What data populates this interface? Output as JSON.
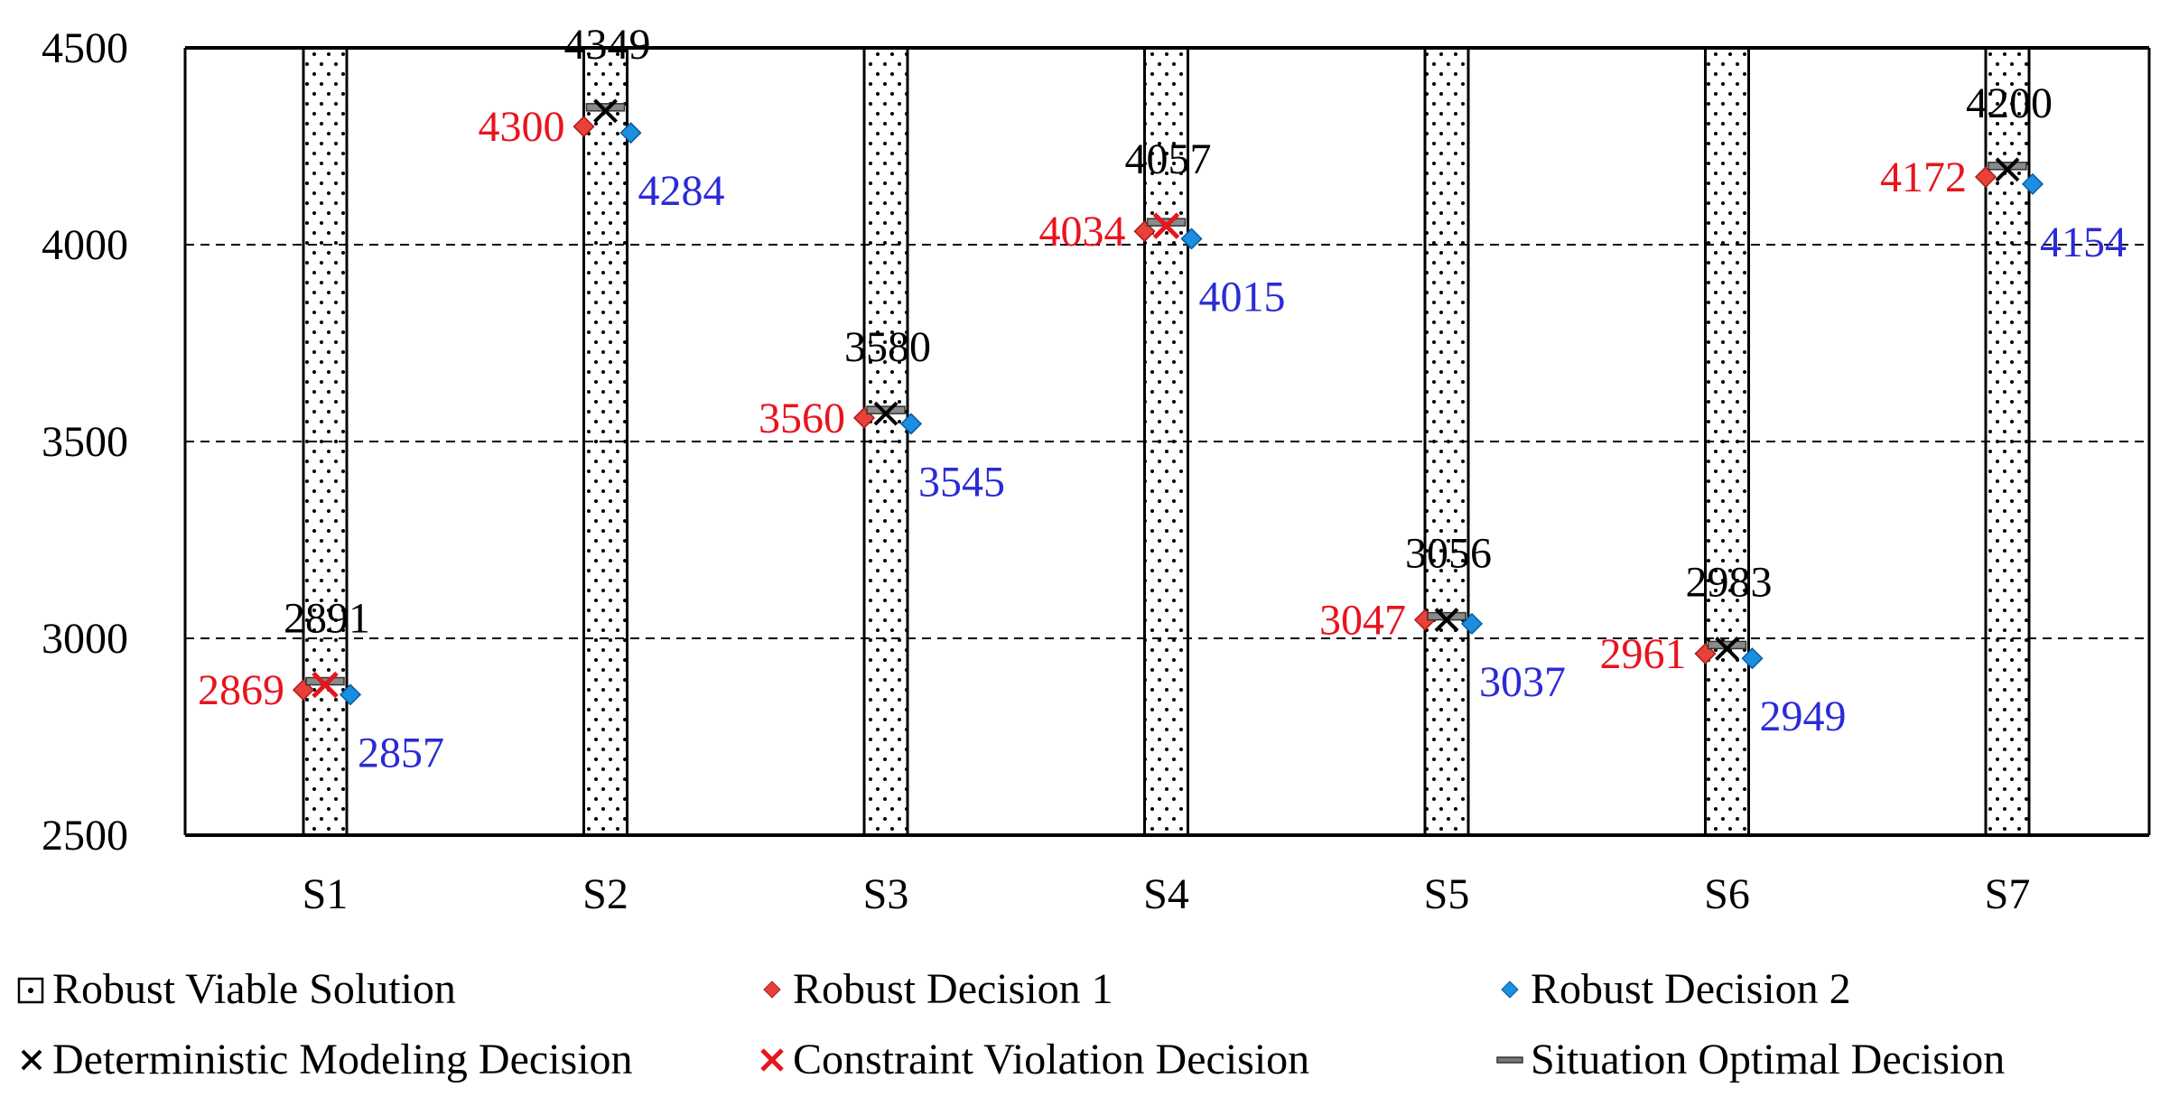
{
  "chart_data": {
    "type": "scatter",
    "categories": [
      "S1",
      "S2",
      "S3",
      "S4",
      "S5",
      "S6",
      "S7"
    ],
    "ylim": [
      2500,
      4500
    ],
    "yticks": [
      2500,
      3000,
      3500,
      4000,
      4500
    ],
    "grid": "horizontal dashed at 3000, 3500, 4000",
    "legend_position": "bottom",
    "series": [
      {
        "name": "Robust Viable Solution",
        "kind": "band",
        "pattern": "dotted"
      },
      {
        "name": "Robust Decision 1",
        "marker": "diamond",
        "color": "#e8413a",
        "label_color": "#e8141e",
        "values": [
          2869,
          4300,
          3560,
          4034,
          3047,
          2961,
          4172
        ]
      },
      {
        "name": "Robust Decision 2",
        "marker": "diamond",
        "color": "#1a8fe0",
        "label_color": "#2b2bd6",
        "values": [
          2857,
          4284,
          3545,
          4015,
          3037,
          2949,
          4154
        ]
      },
      {
        "name": "Deterministic Modeling Decision",
        "marker": "x",
        "color": "#000000"
      },
      {
        "name": "Constraint Violation Decision",
        "marker": "x",
        "color": "#e8141e"
      },
      {
        "name": "Situation Optimal Decision",
        "marker": "dash",
        "color": "#555555",
        "label_color": "#000000",
        "values": [
          2891,
          4349,
          3580,
          4057,
          3056,
          2983,
          4200
        ]
      }
    ],
    "decision_type": [
      "violation",
      "deterministic",
      "deterministic",
      "violation",
      "deterministic",
      "deterministic",
      "deterministic"
    ],
    "value_labels": {
      "optimal": [
        "2891",
        "4349",
        "3580",
        "4057",
        "3056",
        "2983",
        "4200"
      ],
      "robust1": [
        "2869",
        "4300",
        "3560",
        "4034",
        "3047",
        "2961",
        "4172"
      ],
      "robust2": [
        "2857",
        "4284",
        "3545",
        "4015",
        "3037",
        "2949",
        "4154"
      ]
    }
  },
  "legend": {
    "items": [
      {
        "label": "Robust Viable Solution",
        "icon": "dotted-square-icon"
      },
      {
        "label": "Robust Decision 1",
        "icon": "red-diamond-icon"
      },
      {
        "label": "Robust Decision 2",
        "icon": "blue-diamond-icon"
      },
      {
        "label": "Deterministic Modeling Decision",
        "icon": "black-x-icon"
      },
      {
        "label": "Constraint Violation Decision",
        "icon": "red-x-icon"
      },
      {
        "label": "Situation Optimal Decision",
        "icon": "gray-dash-icon"
      }
    ]
  }
}
